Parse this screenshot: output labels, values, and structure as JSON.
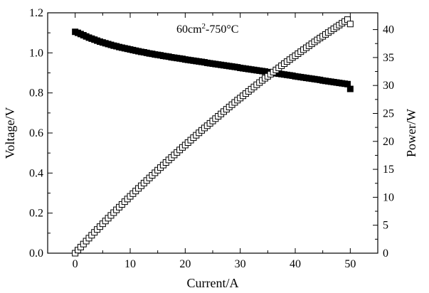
{
  "chart_data": {
    "type": "scatter",
    "annotation": {
      "base": "60cm",
      "sup": "2",
      "rest": "-750°C"
    },
    "xlabel": "Current/A",
    "ylabel": "Voltage/V",
    "y2label": "Power/W",
    "xlim": [
      -5,
      55
    ],
    "ylim": [
      0.0,
      1.2
    ],
    "y2lim": [
      0,
      43
    ],
    "xticks": [
      0,
      10,
      20,
      30,
      40,
      50
    ],
    "yticks": [
      0.0,
      0.2,
      0.4,
      0.6,
      0.8,
      1.0,
      1.2
    ],
    "y2ticks": [
      0,
      5,
      10,
      15,
      20,
      25,
      30,
      35,
      40
    ],
    "grid": false,
    "series": [
      {
        "axis": "left",
        "marker": "filled-square",
        "color": "#000000",
        "x": [
          0,
          0.5,
          1,
          1.5,
          2,
          2.5,
          3,
          3.5,
          4,
          4.5,
          5,
          5.5,
          6,
          6.5,
          7,
          7.5,
          8,
          8.5,
          9,
          9.5,
          10,
          10.5,
          11,
          11.5,
          12,
          12.5,
          13,
          13.5,
          14,
          14.5,
          15,
          15.5,
          16,
          16.5,
          17,
          17.5,
          18,
          18.5,
          19,
          19.5,
          20,
          20.5,
          21,
          21.5,
          22,
          22.5,
          23,
          23.5,
          24,
          24.5,
          25,
          25.5,
          26,
          26.5,
          27,
          27.5,
          28,
          28.5,
          29,
          29.5,
          30,
          30.5,
          31,
          31.5,
          32,
          32.5,
          33,
          33.5,
          34,
          34.5,
          35,
          35.5,
          36,
          36.5,
          37,
          37.5,
          38,
          38.5,
          39,
          39.5,
          40,
          40.5,
          41,
          41.5,
          42,
          42.5,
          43,
          43.5,
          44,
          44.5,
          45,
          45.5,
          46,
          46.5,
          47,
          47.5,
          48,
          48.5,
          49,
          49.5,
          50
        ],
        "y": [
          1.105,
          1.1,
          1.094,
          1.088,
          1.082,
          1.076,
          1.071,
          1.066,
          1.061,
          1.056,
          1.052,
          1.048,
          1.044,
          1.04,
          1.036,
          1.033,
          1.029,
          1.026,
          1.023,
          1.02,
          1.017,
          1.014,
          1.011,
          1.008,
          1.005,
          1.003,
          1,
          0.997,
          0.995,
          0.992,
          0.99,
          0.988,
          0.985,
          0.983,
          0.981,
          0.978,
          0.976,
          0.974,
          0.972,
          0.97,
          0.967,
          0.965,
          0.963,
          0.961,
          0.959,
          0.957,
          0.955,
          0.953,
          0.95,
          0.948,
          0.946,
          0.944,
          0.942,
          0.94,
          0.938,
          0.936,
          0.934,
          0.932,
          0.93,
          0.928,
          0.925,
          0.923,
          0.921,
          0.919,
          0.917,
          0.915,
          0.913,
          0.911,
          0.909,
          0.907,
          0.904,
          0.902,
          0.9,
          0.898,
          0.896,
          0.894,
          0.892,
          0.89,
          0.888,
          0.886,
          0.883,
          0.881,
          0.879,
          0.877,
          0.875,
          0.873,
          0.871,
          0.869,
          0.867,
          0.865,
          0.862,
          0.86,
          0.858,
          0.856,
          0.854,
          0.852,
          0.85,
          0.848,
          0.846,
          0.844,
          0.82
        ]
      },
      {
        "axis": "right",
        "marker": "open-square",
        "color": "#000000",
        "x": [
          0,
          0.5,
          1,
          1.5,
          2,
          2.5,
          3,
          3.5,
          4,
          4.5,
          5,
          5.5,
          6,
          6.5,
          7,
          7.5,
          8,
          8.5,
          9,
          9.5,
          10,
          10.5,
          11,
          11.5,
          12,
          12.5,
          13,
          13.5,
          14,
          14.5,
          15,
          15.5,
          16,
          16.5,
          17,
          17.5,
          18,
          18.5,
          19,
          19.5,
          20,
          20.5,
          21,
          21.5,
          22,
          22.5,
          23,
          23.5,
          24,
          24.5,
          25,
          25.5,
          26,
          26.5,
          27,
          27.5,
          28,
          28.5,
          29,
          29.5,
          30,
          30.5,
          31,
          31.5,
          32,
          32.5,
          33,
          33.5,
          34,
          34.5,
          35,
          35.5,
          36,
          36.5,
          37,
          37.5,
          38,
          38.5,
          39,
          39.5,
          40,
          40.5,
          41,
          41.5,
          42,
          42.5,
          43,
          43.5,
          44,
          44.5,
          45,
          45.5,
          46,
          46.5,
          47,
          47.5,
          48,
          48.5,
          49,
          49.5,
          50
        ],
        "y": [
          0,
          0.55,
          1.09,
          1.63,
          2.16,
          2.69,
          3.21,
          3.73,
          4.24,
          4.75,
          5.26,
          5.76,
          6.26,
          6.76,
          7.25,
          7.75,
          8.23,
          8.72,
          9.21,
          9.69,
          10.17,
          10.65,
          11.12,
          11.59,
          12.06,
          12.54,
          13,
          13.46,
          13.93,
          14.38,
          14.85,
          15.31,
          15.76,
          16.22,
          16.68,
          17.12,
          17.57,
          18.02,
          18.47,
          18.92,
          19.34,
          19.78,
          20.22,
          20.66,
          21.1,
          21.53,
          21.97,
          22.4,
          22.8,
          23.23,
          23.65,
          24.07,
          24.49,
          24.91,
          25.33,
          25.74,
          26.15,
          26.56,
          26.97,
          27.38,
          27.75,
          28.15,
          28.55,
          28.95,
          29.34,
          29.74,
          30.13,
          30.52,
          30.91,
          31.29,
          31.64,
          32.02,
          32.4,
          32.78,
          33.15,
          33.53,
          33.9,
          34.27,
          34.63,
          35,
          35.32,
          35.68,
          36.04,
          36.4,
          36.75,
          37.1,
          37.45,
          37.8,
          38.15,
          38.49,
          38.79,
          39.13,
          39.47,
          39.8,
          40.14,
          40.47,
          40.8,
          41.13,
          41.45,
          41.78,
          41
        ]
      }
    ]
  }
}
